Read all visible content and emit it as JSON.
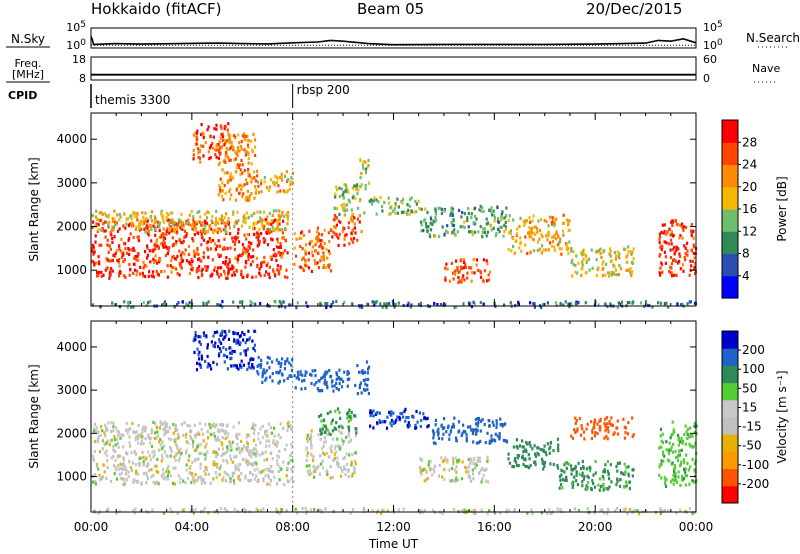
{
  "header": {
    "station": "Hokkaido (fitACF)",
    "beam": "Beam 05",
    "date": "20/Dec/2015"
  },
  "colors": {
    "power": [
      "#0000ff",
      "#2a4fb0",
      "#2e8b57",
      "#6cbf6c",
      "#f5b800",
      "#ff8c00",
      "#ff4500",
      "#ff0000"
    ],
    "velocity": [
      "#ff0000",
      "#ff5500",
      "#ff9900",
      "#e8b000",
      "#c0c0c0",
      "#c8c8c8",
      "#55cc33",
      "#2e8b57",
      "#1e64c8",
      "#0000cc"
    ],
    "ground_scatter": "#c0c0c0"
  },
  "chart_data": [
    {
      "type": "line",
      "panel": "nsky-nsearch",
      "left_label": "N.Sky",
      "right_label": "N.Search",
      "left_ticks": [
        "10^5",
        "10^0"
      ],
      "right_ticks": [
        "10^5",
        "10^0"
      ],
      "series": [
        {
          "name": "N.Sky",
          "style": "solid",
          "x": [
            0,
            0.05,
            0.1,
            1.0,
            2.0,
            3.5,
            5.0,
            6.0,
            7.0,
            8.0,
            9.0,
            9.5,
            10.0,
            11.0,
            12.0,
            14.0,
            16.0,
            18.0,
            20.0,
            22.0,
            22.5,
            23.0,
            23.5,
            24.0
          ],
          "y": [
            0.6,
            0.4,
            0.1,
            0.15,
            0.12,
            0.15,
            0.18,
            0.15,
            0.13,
            0.2,
            0.25,
            0.35,
            0.3,
            0.15,
            0.08,
            0.1,
            0.1,
            0.1,
            0.12,
            0.18,
            0.35,
            0.3,
            0.45,
            0.2
          ]
        },
        {
          "name": "N.Search",
          "style": "dotted",
          "x": [
            0,
            24
          ],
          "y": [
            0.05,
            0.05
          ]
        }
      ]
    },
    {
      "type": "line",
      "panel": "freq-nave",
      "left_label": "Freq. [MHz]",
      "right_label": "Nave",
      "left_ticks": [
        "18",
        "8"
      ],
      "right_ticks": [
        "60",
        "0"
      ],
      "series": [
        {
          "name": "Freq.",
          "style": "solid",
          "x": [
            0,
            24
          ],
          "y": [
            10.3,
            10.3
          ]
        },
        {
          "name": "Nave",
          "style": "dotted",
          "x": [
            0,
            24
          ],
          "y": [
            13.5,
            13.5
          ]
        }
      ]
    },
    {
      "type": "table",
      "panel": "cpid",
      "label": "CPID",
      "x": [
        0,
        8
      ],
      "modes": [
        "themis 3300",
        "rbsp 200"
      ]
    },
    {
      "type": "heatmap",
      "panel": "power",
      "ylabel": "Slant Range [km]",
      "yticks": [
        1000,
        2000,
        3000,
        4000
      ],
      "ylim": [
        180,
        4600
      ],
      "colorbar_label": "Power [dB]",
      "colorbar_ticks": [
        "28",
        "24",
        "20",
        "16",
        "12",
        "8",
        "4"
      ],
      "regions": [
        {
          "x": [
            0.0,
            7.8
          ],
          "y": [
            850,
            2200
          ],
          "v": 28
        },
        {
          "x": [
            0.0,
            7.8
          ],
          "y": [
            1900,
            2400
          ],
          "v": 18
        },
        {
          "x": [
            4.0,
            5.5
          ],
          "y": [
            3500,
            4400
          ],
          "v": 26
        },
        {
          "x": [
            5.0,
            6.5
          ],
          "y": [
            2600,
            4200
          ],
          "v": 22
        },
        {
          "x": [
            6.5,
            8.0
          ],
          "y": [
            2800,
            3300
          ],
          "v": 20
        },
        {
          "x": [
            8.0,
            9.5
          ],
          "y": [
            1000,
            2000
          ],
          "v": 24
        },
        {
          "x": [
            9.5,
            10.7
          ],
          "y": [
            1600,
            2300
          ],
          "v": 26
        },
        {
          "x": [
            9.5,
            10.8
          ],
          "y": [
            2300,
            3000
          ],
          "v": 14
        },
        {
          "x": [
            10.6,
            11.0
          ],
          "y": [
            2900,
            3600
          ],
          "v": 16
        },
        {
          "x": [
            11.0,
            13.0
          ],
          "y": [
            2300,
            2700
          ],
          "v": 14
        },
        {
          "x": [
            13.0,
            16.5
          ],
          "y": [
            1800,
            2500
          ],
          "v": 12
        },
        {
          "x": [
            14.0,
            15.8
          ],
          "y": [
            750,
            1300
          ],
          "v": 26
        },
        {
          "x": [
            16.5,
            19.0
          ],
          "y": [
            1400,
            2300
          ],
          "v": 20
        },
        {
          "x": [
            19.0,
            21.5
          ],
          "y": [
            900,
            1600
          ],
          "v": 18
        },
        {
          "x": [
            22.5,
            24.0
          ],
          "y": [
            900,
            2200
          ],
          "v": 28
        },
        {
          "x": [
            0.0,
            24.0
          ],
          "y": [
            180,
            320
          ],
          "v": 8
        }
      ]
    },
    {
      "type": "heatmap",
      "panel": "velocity",
      "ylabel": "Slant Range [km]",
      "yticks": [
        1000,
        2000,
        3000,
        4000
      ],
      "ylim": [
        180,
        4600
      ],
      "colorbar_label": "Velocity [m s⁻¹]",
      "colorbar_ticks": [
        "200",
        "100",
        "50",
        "15",
        "-15",
        "-50",
        "-100",
        "-200"
      ],
      "xticks": [
        "00:00",
        "04:00",
        "08:00",
        "12:00",
        "16:00",
        "20:00",
        "00:00"
      ],
      "xlabel": "Time UT",
      "regions": [
        {
          "x": [
            0.0,
            8.0
          ],
          "y": [
            850,
            2300
          ],
          "v": 0
        },
        {
          "x": [
            4.0,
            6.5
          ],
          "y": [
            3500,
            4400
          ],
          "v": 200
        },
        {
          "x": [
            6.5,
            8.0
          ],
          "y": [
            3200,
            3800
          ],
          "v": 180
        },
        {
          "x": [
            8.0,
            10.5
          ],
          "y": [
            3000,
            3500
          ],
          "v": 180
        },
        {
          "x": [
            8.5,
            10.5
          ],
          "y": [
            1000,
            2100
          ],
          "v": 0
        },
        {
          "x": [
            9.0,
            10.5
          ],
          "y": [
            2000,
            2600
          ],
          "v": 60
        },
        {
          "x": [
            10.5,
            11.0
          ],
          "y": [
            2900,
            3700
          ],
          "v": 180
        },
        {
          "x": [
            11.0,
            13.5
          ],
          "y": [
            2150,
            2600
          ],
          "v": 200
        },
        {
          "x": [
            13.5,
            16.5
          ],
          "y": [
            1800,
            2400
          ],
          "v": 150
        },
        {
          "x": [
            16.5,
            18.5
          ],
          "y": [
            1200,
            1900
          ],
          "v": 80
        },
        {
          "x": [
            18.5,
            21.5
          ],
          "y": [
            700,
            1400
          ],
          "v": 60
        },
        {
          "x": [
            19.0,
            21.5
          ],
          "y": [
            1900,
            2400
          ],
          "v": -120
        },
        {
          "x": [
            13.0,
            15.8
          ],
          "y": [
            900,
            1500
          ],
          "v": 0
        },
        {
          "x": [
            22.5,
            24.0
          ],
          "y": [
            800,
            2300
          ],
          "v": 40
        },
        {
          "x": [
            0.0,
            24.0
          ],
          "y": [
            180,
            300
          ],
          "v": 0
        }
      ]
    }
  ]
}
